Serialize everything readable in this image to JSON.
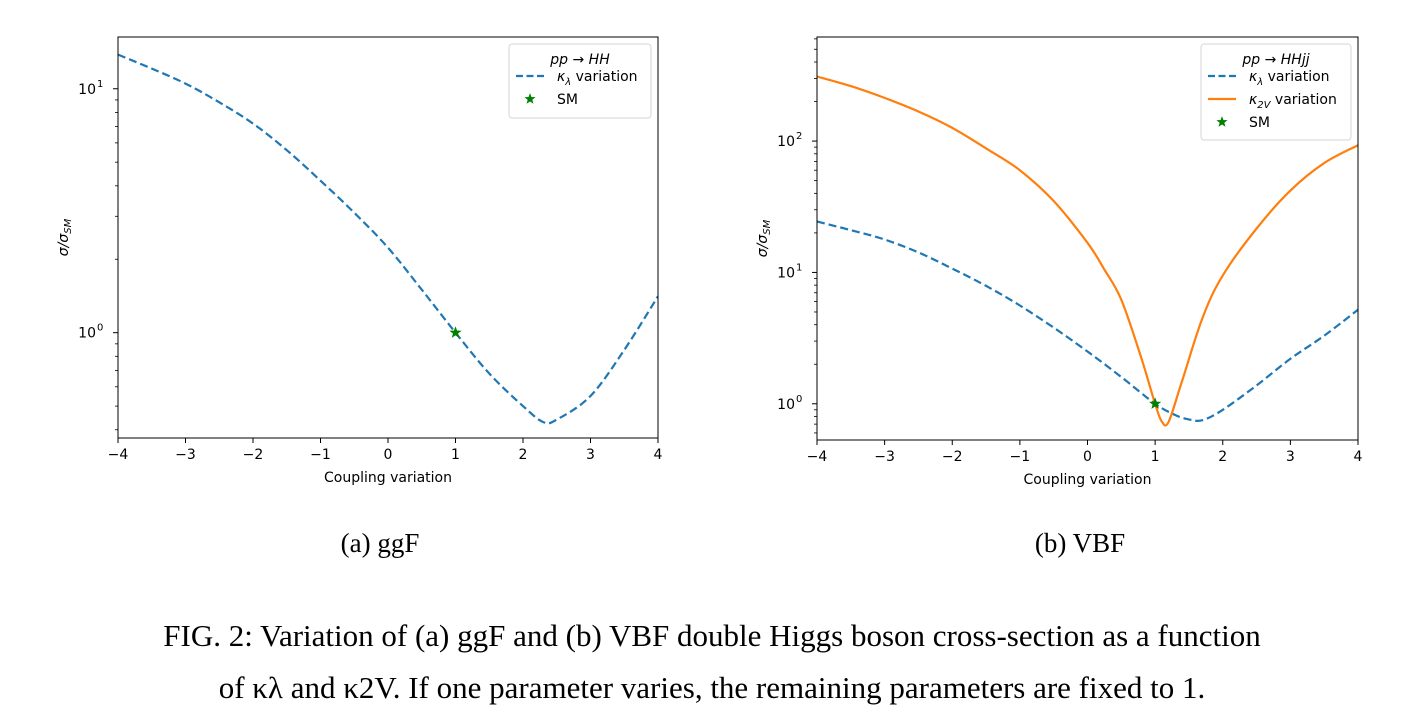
{
  "chart_data": [
    {
      "id": "a",
      "type": "line",
      "title": "",
      "xlabel": "Coupling variation",
      "ylabel": "σ/σ_SM",
      "yscale": "log",
      "xlim": [
        -4,
        4
      ],
      "ylim": [
        0.37,
        16.3
      ],
      "xticks": [
        "−4",
        "−3",
        "−2",
        "−1",
        "0",
        "1",
        "2",
        "3",
        "4"
      ],
      "yticks": [
        {
          "value": 1,
          "label": "10",
          "exp": "0"
        },
        {
          "value": 10,
          "label": "10",
          "exp": "1"
        }
      ],
      "legend": {
        "placement": "top-right",
        "title": "pp → HH",
        "entries": [
          "κλ variation",
          "SM"
        ]
      },
      "series": [
        {
          "name": "κλ variation",
          "style": "dashed",
          "color": "#1f77b4",
          "x": [
            -4,
            -3.5,
            -3,
            -2.5,
            -2,
            -1.5,
            -1,
            -0.5,
            0,
            0.5,
            1,
            1.5,
            2,
            2.3,
            2.5,
            3,
            3.5,
            4
          ],
          "y": [
            13.8,
            12.1,
            10.5,
            8.8,
            7.2,
            5.6,
            4.2,
            3.1,
            2.23,
            1.5,
            1.0,
            0.68,
            0.5,
            0.43,
            0.44,
            0.55,
            0.85,
            1.41
          ]
        }
      ],
      "markers": [
        {
          "name": "SM",
          "x": 1,
          "y": 1,
          "color": "#008000",
          "symbol": "star"
        }
      ]
    },
    {
      "id": "b",
      "type": "line",
      "title": "",
      "xlabel": "Coupling variation",
      "ylabel": "σ/σ_SM",
      "yscale": "log",
      "xlim": [
        -4,
        4
      ],
      "ylim": [
        0.53,
        620
      ],
      "xticks": [
        "−4",
        "−3",
        "−2",
        "−1",
        "0",
        "1",
        "2",
        "3",
        "4"
      ],
      "yticks": [
        {
          "value": 1,
          "label": "10",
          "exp": "0"
        },
        {
          "value": 10,
          "label": "10",
          "exp": "1"
        },
        {
          "value": 100,
          "label": "10",
          "exp": "2"
        }
      ],
      "legend": {
        "placement": "top-right",
        "title": "pp → HHjj",
        "entries": [
          "κλ variation",
          "κ2V variation",
          "SM"
        ]
      },
      "series": [
        {
          "name": "κλ variation",
          "style": "dashed",
          "color": "#1f77b4",
          "x": [
            -4,
            -3.5,
            -3,
            -2.5,
            -2,
            -1.5,
            -1,
            -0.5,
            0,
            0.5,
            1,
            1.3,
            1.5,
            1.7,
            2,
            2.5,
            3,
            3.5,
            4
          ],
          "y": [
            24.4,
            21,
            17.8,
            14.2,
            10.7,
            7.9,
            5.6,
            3.8,
            2.5,
            1.6,
            1.0,
            0.82,
            0.76,
            0.75,
            0.9,
            1.38,
            2.2,
            3.3,
            5.2
          ]
        },
        {
          "name": "κ2V variation",
          "style": "solid",
          "color": "#ff7f0e",
          "x": [
            -4,
            -3.5,
            -3,
            -2.5,
            -2,
            -1.5,
            -1,
            -0.5,
            0,
            0.25,
            0.5,
            0.8,
            1,
            1.1,
            1.2,
            1.4,
            1.7,
            2,
            2.5,
            3,
            3.5,
            4
          ],
          "y": [
            310,
            262,
            213,
            168,
            126,
            88,
            60,
            35,
            16.8,
            10.5,
            6.2,
            2.2,
            1.0,
            0.73,
            0.73,
            1.5,
            4.5,
            9.5,
            21.6,
            42,
            68,
            93
          ]
        }
      ],
      "markers": [
        {
          "name": "SM",
          "x": 1,
          "y": 1,
          "color": "#008000",
          "symbol": "star"
        }
      ]
    }
  ],
  "subcaptions": {
    "a": "(a) ggF",
    "b": "(b) VBF"
  },
  "caption": {
    "line1": "FIG. 2: Variation of (a) ggF and (b) VBF double Higgs boson cross-section as a function",
    "line2": "of κλ and κ2V. If one parameter varies, the remaining parameters are fixed to 1."
  }
}
